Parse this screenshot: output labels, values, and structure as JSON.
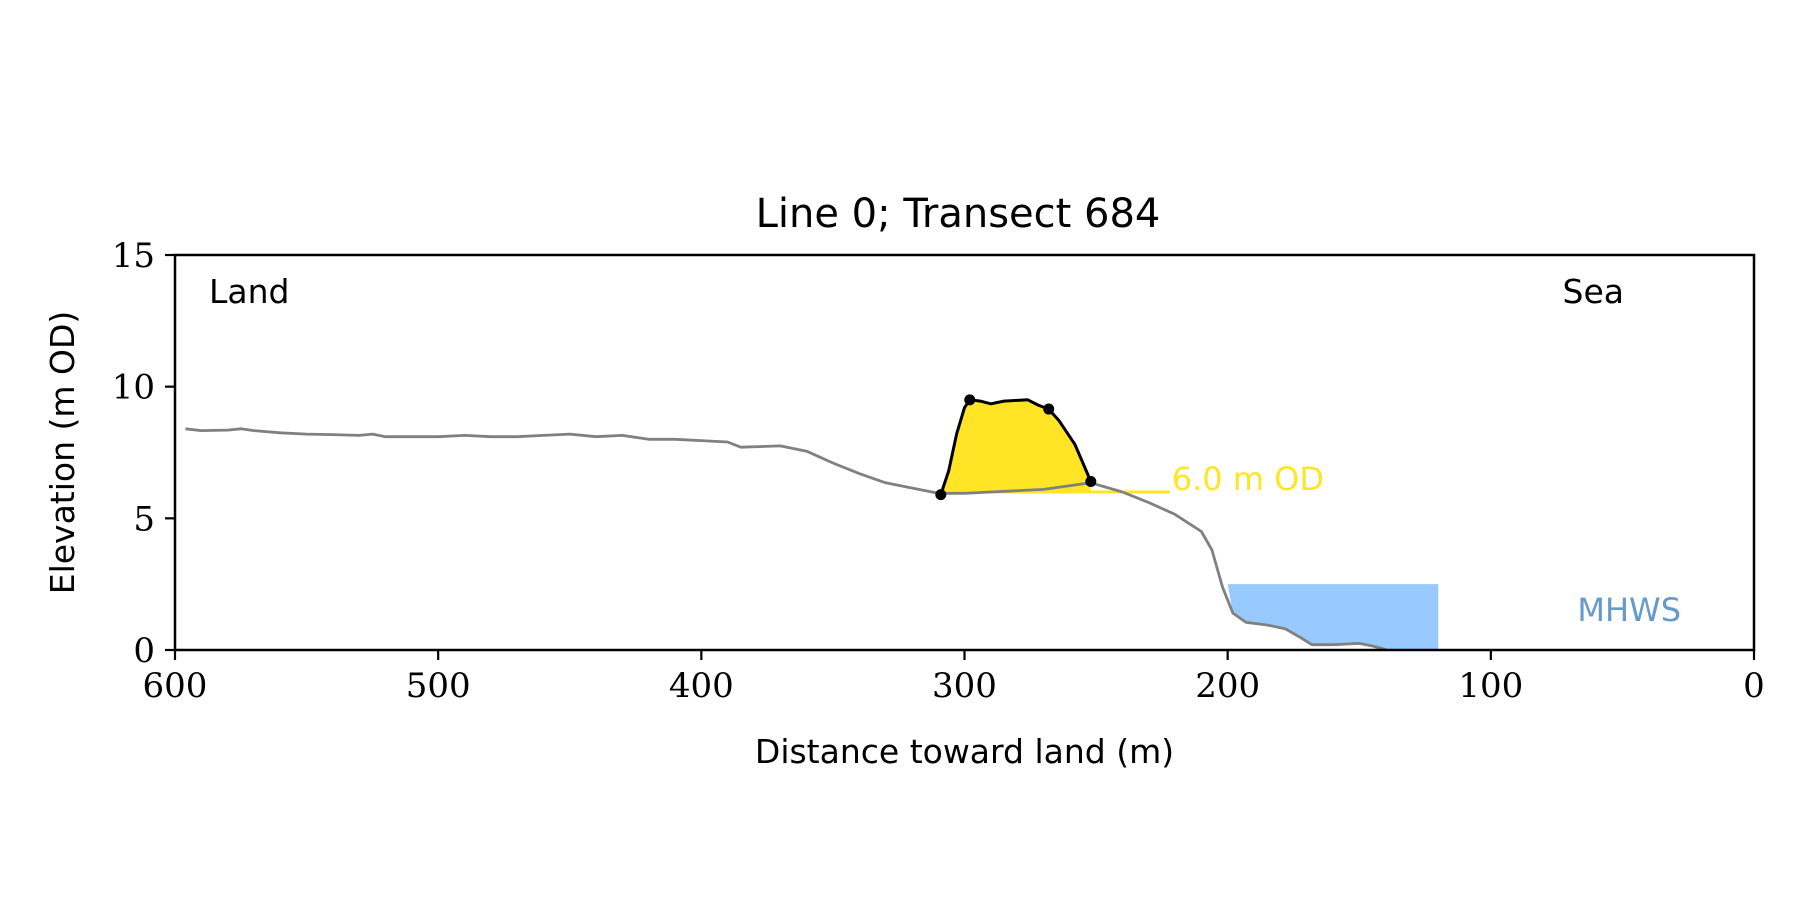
{
  "chart_data": {
    "type": "line",
    "title": "Line 0; Transect 684",
    "xlabel": "Distance toward land (m)",
    "ylabel": "Elevation (m OD)",
    "xlim": [
      600,
      0
    ],
    "ylim": [
      0,
      15
    ],
    "x_ticks": [
      600,
      500,
      400,
      300,
      200,
      100,
      0
    ],
    "y_ticks": [
      0,
      5,
      10,
      15
    ],
    "grid": false,
    "corner_labels": {
      "left": "Land",
      "right": "Sea"
    },
    "profile": {
      "color": "#808080",
      "points": [
        [
          596,
          8.4
        ],
        [
          590,
          8.33
        ],
        [
          580,
          8.35
        ],
        [
          575,
          8.4
        ],
        [
          570,
          8.33
        ],
        [
          560,
          8.25
        ],
        [
          550,
          8.2
        ],
        [
          540,
          8.18
        ],
        [
          530,
          8.15
        ],
        [
          525,
          8.2
        ],
        [
          520,
          8.1
        ],
        [
          510,
          8.1
        ],
        [
          500,
          8.1
        ],
        [
          490,
          8.15
        ],
        [
          480,
          8.1
        ],
        [
          470,
          8.1
        ],
        [
          460,
          8.15
        ],
        [
          450,
          8.2
        ],
        [
          440,
          8.1
        ],
        [
          430,
          8.15
        ],
        [
          420,
          8.0
        ],
        [
          410,
          8.0
        ],
        [
          400,
          7.95
        ],
        [
          390,
          7.9
        ],
        [
          385,
          7.7
        ],
        [
          370,
          7.75
        ],
        [
          360,
          7.55
        ],
        [
          350,
          7.1
        ],
        [
          340,
          6.7
        ],
        [
          330,
          6.35
        ],
        [
          320,
          6.15
        ],
        [
          310,
          5.95
        ],
        [
          300,
          5.95
        ],
        [
          290,
          6.0
        ],
        [
          270,
          6.1
        ],
        [
          252,
          6.35
        ],
        [
          240,
          6.0
        ],
        [
          230,
          5.6
        ],
        [
          220,
          5.15
        ],
        [
          210,
          4.5
        ],
        [
          206,
          3.8
        ],
        [
          202,
          2.4
        ],
        [
          198,
          1.4
        ],
        [
          193,
          1.05
        ],
        [
          185,
          0.95
        ],
        [
          178,
          0.8
        ],
        [
          172,
          0.45
        ],
        [
          168,
          0.2
        ],
        [
          160,
          0.2
        ],
        [
          150,
          0.25
        ],
        [
          145,
          0.15
        ],
        [
          140,
          0.02
        ]
      ]
    },
    "dune": {
      "color": "#ffe526",
      "outline_color": "#000000",
      "outline": [
        [
          309,
          5.9
        ],
        [
          306,
          6.8
        ],
        [
          303,
          8.2
        ],
        [
          300,
          9.2
        ],
        [
          298,
          9.5
        ],
        [
          294,
          9.45
        ],
        [
          290,
          9.35
        ],
        [
          285,
          9.45
        ],
        [
          276,
          9.5
        ],
        [
          272,
          9.3
        ],
        [
          268,
          9.15
        ],
        [
          264,
          8.7
        ],
        [
          258,
          7.8
        ],
        [
          255,
          7.1
        ],
        [
          252,
          6.4
        ]
      ],
      "markers": [
        [
          309,
          5.9
        ],
        [
          298,
          9.5
        ],
        [
          268,
          9.15
        ],
        [
          252,
          6.4
        ]
      ]
    },
    "threshold": {
      "label": "6.0 m OD",
      "value": 6.0,
      "x_start": 309,
      "x_end": 222,
      "color": "#ffe526"
    },
    "mhws": {
      "label": "MHWS",
      "level": 2.5,
      "x_start": 200,
      "x_end": 120,
      "color": "#99caff",
      "label_color": "#6699cc"
    }
  }
}
